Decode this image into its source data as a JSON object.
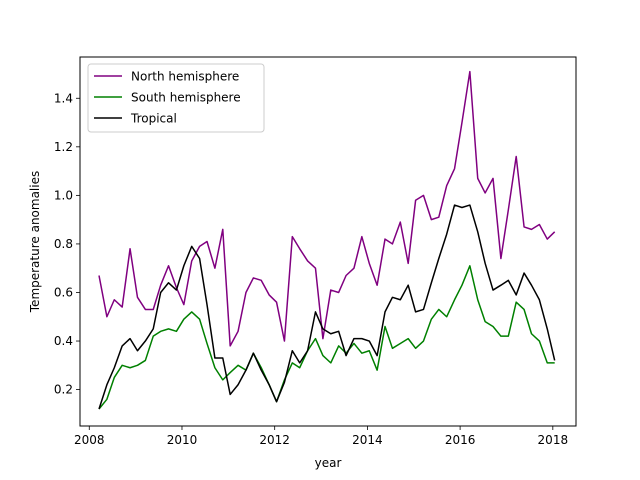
{
  "chart_data": {
    "type": "line",
    "xlabel": "year",
    "ylabel": "Temperature anomalies",
    "xlim": [
      2007.8,
      2018.5
    ],
    "ylim": [
      0.05,
      1.57
    ],
    "xticks": [
      2008,
      2010,
      2012,
      2014,
      2016,
      2018
    ],
    "yticks": [
      0.2,
      0.4,
      0.6,
      0.8,
      1.0,
      1.2,
      1.4
    ],
    "ytick_labels": [
      "0.2",
      "0.4",
      "0.6",
      "0.8",
      "1.0",
      "1.2",
      "1.4"
    ],
    "grid": false,
    "legend_position": "upper-left",
    "x": [
      2008.21,
      2008.38,
      2008.54,
      2008.71,
      2008.88,
      2009.04,
      2009.21,
      2009.38,
      2009.54,
      2009.71,
      2009.88,
      2010.04,
      2010.21,
      2010.38,
      2010.54,
      2010.71,
      2010.88,
      2011.04,
      2011.21,
      2011.38,
      2011.54,
      2011.71,
      2011.88,
      2012.04,
      2012.21,
      2012.38,
      2012.54,
      2012.71,
      2012.88,
      2013.04,
      2013.21,
      2013.38,
      2013.54,
      2013.71,
      2013.88,
      2014.04,
      2014.21,
      2014.38,
      2014.54,
      2014.71,
      2014.88,
      2015.04,
      2015.21,
      2015.38,
      2015.54,
      2015.71,
      2015.88,
      2016.04,
      2016.21,
      2016.38,
      2016.54,
      2016.71,
      2016.88,
      2017.04,
      2017.21,
      2017.38,
      2017.54,
      2017.71,
      2017.88,
      2018.04
    ],
    "series": [
      {
        "name": "North hemisphere",
        "color": "#800080",
        "values": [
          0.67,
          0.5,
          0.57,
          0.54,
          0.78,
          0.58,
          0.53,
          0.53,
          0.63,
          0.71,
          0.62,
          0.55,
          0.73,
          0.79,
          0.81,
          0.7,
          0.86,
          0.38,
          0.44,
          0.6,
          0.66,
          0.65,
          0.59,
          0.56,
          0.4,
          0.83,
          0.78,
          0.73,
          0.7,
          0.41,
          0.61,
          0.6,
          0.67,
          0.7,
          0.83,
          0.72,
          0.63,
          0.82,
          0.8,
          0.89,
          0.72,
          0.98,
          1.0,
          0.9,
          0.91,
          1.04,
          1.11,
          1.3,
          1.51,
          1.07,
          1.01,
          1.07,
          0.74,
          0.94,
          1.16,
          0.87,
          0.86,
          0.88,
          0.82,
          0.85
        ]
      },
      {
        "name": "South hemisphere",
        "color": "#008000",
        "values": [
          0.12,
          0.16,
          0.25,
          0.3,
          0.29,
          0.3,
          0.32,
          0.42,
          0.44,
          0.45,
          0.44,
          0.49,
          0.52,
          0.49,
          0.39,
          0.29,
          0.24,
          0.27,
          0.3,
          0.28,
          0.35,
          0.29,
          0.22,
          0.15,
          0.24,
          0.31,
          0.29,
          0.36,
          0.41,
          0.34,
          0.31,
          0.38,
          0.35,
          0.39,
          0.35,
          0.36,
          0.28,
          0.46,
          0.37,
          0.39,
          0.41,
          0.37,
          0.4,
          0.49,
          0.53,
          0.5,
          0.57,
          0.63,
          0.71,
          0.57,
          0.48,
          0.46,
          0.42,
          0.42,
          0.56,
          0.53,
          0.43,
          0.4,
          0.31,
          0.31
        ]
      },
      {
        "name": "Tropical",
        "color": "#000000",
        "values": [
          0.12,
          0.22,
          0.29,
          0.38,
          0.41,
          0.36,
          0.4,
          0.45,
          0.6,
          0.64,
          0.61,
          0.71,
          0.79,
          0.74,
          0.55,
          0.33,
          0.33,
          0.18,
          0.22,
          0.28,
          0.35,
          0.28,
          0.22,
          0.15,
          0.23,
          0.36,
          0.31,
          0.36,
          0.52,
          0.45,
          0.43,
          0.44,
          0.34,
          0.41,
          0.41,
          0.4,
          0.34,
          0.52,
          0.58,
          0.57,
          0.63,
          0.52,
          0.53,
          0.64,
          0.74,
          0.84,
          0.96,
          0.95,
          0.96,
          0.85,
          0.72,
          0.61,
          0.63,
          0.65,
          0.59,
          0.68,
          0.63,
          0.57,
          0.45,
          0.32
        ]
      }
    ]
  }
}
